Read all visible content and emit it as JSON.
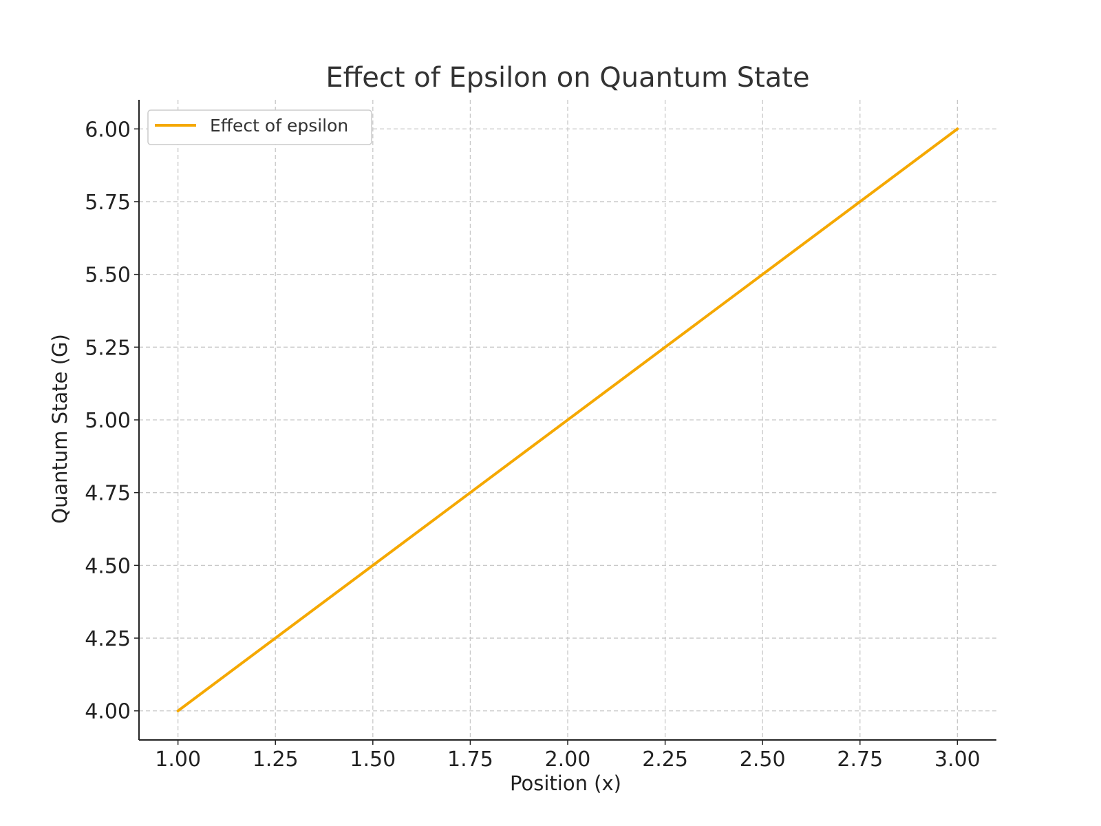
{
  "chart_data": {
    "type": "line",
    "title": "Effect of Epsilon on Quantum State",
    "xlabel": "Position (x)",
    "ylabel": "Quantum State (G)",
    "xlim": [
      0.9,
      3.1
    ],
    "ylim": [
      3.9,
      6.1
    ],
    "x_ticks": [
      "1.00",
      "1.25",
      "1.50",
      "1.75",
      "2.00",
      "2.25",
      "2.50",
      "2.75",
      "3.00"
    ],
    "y_ticks": [
      "4.00",
      "4.25",
      "4.50",
      "4.75",
      "5.00",
      "5.25",
      "5.50",
      "5.75",
      "6.00"
    ],
    "grid": true,
    "legend_position": "top-left",
    "series": [
      {
        "name": "Effect of epsilon",
        "color": "#F5A800",
        "x": [
          1.0,
          3.0
        ],
        "y": [
          4.0,
          6.0
        ]
      }
    ]
  }
}
